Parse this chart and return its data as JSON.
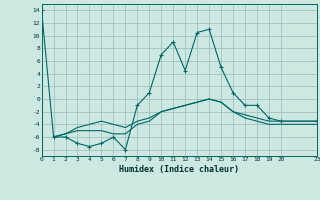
{
  "xlabel": "Humidex (Indice chaleur)",
  "background_color": "#cce8e0",
  "grid_color": "#99bbbb",
  "line_color": "#006666",
  "xlim": [
    0,
    23
  ],
  "ylim": [
    -9,
    15
  ],
  "yticks": [
    14,
    12,
    10,
    8,
    6,
    4,
    2,
    0,
    -2,
    -4,
    -6,
    -8
  ],
  "xticks": [
    0,
    1,
    2,
    3,
    4,
    5,
    6,
    7,
    8,
    9,
    10,
    11,
    12,
    13,
    14,
    15,
    16,
    17,
    18,
    19,
    20,
    23
  ],
  "s1_x": [
    0,
    1,
    2,
    3,
    4,
    5,
    6,
    7,
    8,
    9,
    10,
    11,
    12,
    13,
    14,
    15,
    16,
    17,
    18,
    19,
    20,
    23
  ],
  "s1_y": [
    14,
    -6,
    -6,
    -7,
    -7.5,
    -7,
    -6,
    -8,
    -1,
    1,
    7,
    9,
    4.5,
    10.5,
    11,
    5,
    1,
    -1,
    -1,
    -3,
    -3.5,
    -3.5
  ],
  "s2_x": [
    1,
    2,
    3,
    4,
    5,
    6,
    7,
    8,
    9,
    10,
    11,
    12,
    13,
    14,
    15,
    16,
    17,
    18,
    19,
    20,
    23
  ],
  "s2_y": [
    -6,
    -5.5,
    -5,
    -5,
    -5,
    -5.5,
    -5.5,
    -4,
    -3.5,
    -2,
    -1.5,
    -1,
    -0.5,
    0,
    -0.5,
    -2,
    -3,
    -3.5,
    -4,
    -4,
    -4
  ],
  "s3_x": [
    1,
    2,
    3,
    4,
    5,
    6,
    7,
    8,
    9,
    10,
    11,
    12,
    13,
    14,
    15,
    16,
    17,
    18,
    19,
    20,
    23
  ],
  "s3_y": [
    -6,
    -5.5,
    -4.5,
    -4,
    -3.5,
    -4,
    -4.5,
    -3.5,
    -3,
    -2,
    -1.5,
    -1,
    -0.5,
    0,
    -0.5,
    -2,
    -2.5,
    -3,
    -3.5,
    -3.5,
    -3.5
  ]
}
